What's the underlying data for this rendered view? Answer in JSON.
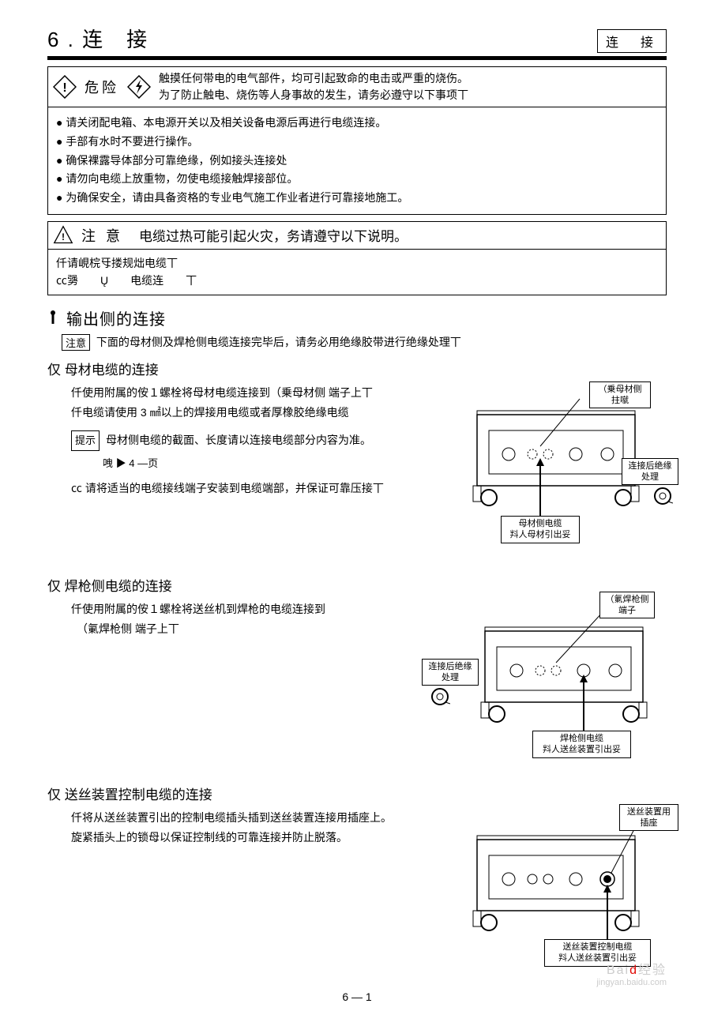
{
  "header": {
    "chapter": "6 . 连　接",
    "tag": "连　接"
  },
  "danger": {
    "label": "危险",
    "para1": "触摸任何带电的电气部件，均可引起致命的电击或严重的烧伤。",
    "para2": "为了防止触电、烧伤等人身事故的发生，请务必遵守以下事项丅",
    "items": [
      "请关闭配电箱、本电源开关以及相关设备电源后再进行电缆连接。",
      "手部有水时不要进行操作。",
      "确保裸露导体部分可靠绝缘，例如接头连接处",
      "请勿向电缆上放重物，勿使电缆接触焊接部位。",
      "为确保安全，请由具备资格的专业电气施工作业者进行可靠接地施工。"
    ]
  },
  "caution": {
    "label": "注 意",
    "para": "电缆过热可能引起火灾，务请遵守以下说明。",
    "body1": "仟请峴梡㸦搂规炪电缆丅",
    "body2": "㏄勥　　Ų　　电缆连　　丅"
  },
  "section1": {
    "title": "输出侧的连接",
    "note": "注意",
    "noteText": "下面的母材侧及焊枪侧电缆连接完毕后，请务必用绝缘胶带进行绝缘处理丅"
  },
  "sub1": {
    "title": "仅 母材电缆的连接",
    "line1": "仟使用附属的侒１螺栓将母材电缆连接到（乗母材侧 端子上丅",
    "line2": "仟电缆请使用 3 ㎟以上的焊接用电缆或者厚橡胶绝缘电缆",
    "tipLabel": "提示",
    "tipText": "母材侧电缆的截面、长度请以连接电缆部分内容为准。",
    "ref": "㖂 ▶ 4 —页",
    "bullet": "㏄ 请将适当的电缆接线端子安装到电缆端部，并保证可靠压接丅",
    "fig": {
      "label1": "（乗母材侧\n拄噈",
      "label2": "连接后绝缘\n处理",
      "label3": "母材侧电缆\n㪵人母材引出妥"
    }
  },
  "sub2": {
    "title": "仅 焊枪侧电缆的连接",
    "line1": "仟使用附属的侒１螺栓将送丝机到焊枪的电缆连接到",
    "line2": "　（氭焊枪侧 端子上丅",
    "fig": {
      "label1": "（氭焊枪侧\n端子",
      "label2": "连接后绝缘\n处理",
      "label3": "焊枪侧电缆\n㪵人送丝装置引出妥"
    }
  },
  "sub3": {
    "title": "仅 送丝装置控制电缆的连接",
    "line1": "仟将从送丝装置引出的控制电缆插头插到送丝装置连接用插座上。",
    "line2": "旋紧插头上的锁母以保证控制线的可靠连接并防止脱落。",
    "fig": {
      "label1": "送丝装置用\n插座",
      "label2": "送丝装置控制电缆\n㪵人送丝装置引出妥"
    }
  },
  "pageNum": "6 — 1",
  "watermark": "jingyan.baidu.com"
}
